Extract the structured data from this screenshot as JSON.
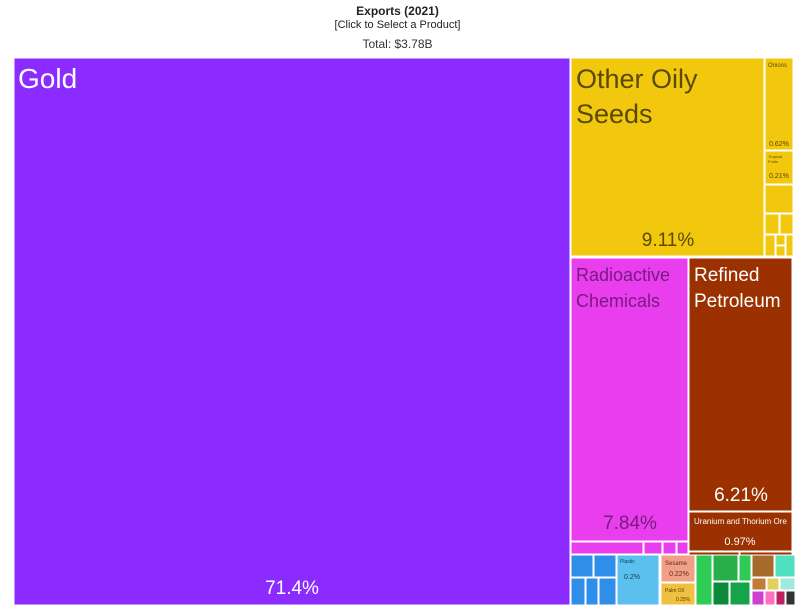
{
  "header": {
    "title": "Exports (2021)",
    "select_label": "[Click to Select a Product]",
    "total": "Total: $3.78B"
  },
  "chart_data": {
    "type": "treemap",
    "title": "Exports (2021)",
    "total": "Total: $3.78B",
    "items": [
      {
        "name": "Gold",
        "share": "71.4%",
        "value": 71.4,
        "color": "#8b2bff"
      },
      {
        "name": "Other Oily Seeds",
        "share": "9.11%",
        "value": 9.11,
        "color": "#f2c80f"
      },
      {
        "name": "Radioactive Chemicals",
        "share": "7.84%",
        "value": 7.84,
        "color": "#e83eee"
      },
      {
        "name": "Refined Petroleum",
        "share": "6.21%",
        "value": 6.21,
        "color": "#9b3100"
      },
      {
        "name": "Uranium and Thorium Ore",
        "share": "0.97%",
        "value": 0.97,
        "color": "#9b3100"
      },
      {
        "name": "Onions",
        "share": "0.62%",
        "value": 0.62,
        "color": "#f2c80f"
      },
      {
        "name": "Tropical Fruits",
        "share": "0.21%",
        "value": 0.21,
        "color": "#f2c80f"
      },
      {
        "name": "Sesame",
        "share": "0.22%",
        "value": 0.22,
        "color": "#f0a088"
      },
      {
        "name": "Palm Oil",
        "share": "0.25%",
        "value": 0.25,
        "color": "#f0c040"
      },
      {
        "name": "Plastic",
        "share": "0.2%",
        "value": 0.2,
        "color": "#5bc0ee"
      }
    ]
  }
}
